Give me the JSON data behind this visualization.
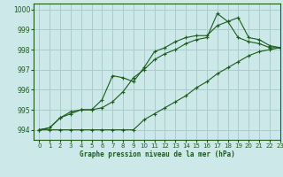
{
  "title": "Graphe pression niveau de la mer (hPa)",
  "bg_color": "#cce8e8",
  "grid_color": "#aacccc",
  "line_color": "#1a5c1a",
  "xlim": [
    -0.5,
    23
  ],
  "ylim": [
    993.5,
    1000.3
  ],
  "yticks": [
    994,
    995,
    996,
    997,
    998,
    999,
    1000
  ],
  "xticks": [
    0,
    1,
    2,
    3,
    4,
    5,
    6,
    7,
    8,
    9,
    10,
    11,
    12,
    13,
    14,
    15,
    16,
    17,
    18,
    19,
    20,
    21,
    22,
    23
  ],
  "series": [
    [
      994.0,
      994.1,
      994.6,
      994.8,
      995.0,
      995.0,
      995.1,
      995.4,
      995.9,
      996.6,
      997.0,
      997.5,
      997.8,
      998.0,
      998.3,
      998.5,
      998.6,
      999.8,
      999.4,
      999.6,
      998.6,
      998.5,
      998.2,
      998.1
    ],
    [
      994.0,
      994.1,
      994.6,
      994.9,
      995.0,
      995.0,
      995.5,
      996.7,
      996.6,
      996.4,
      997.1,
      997.9,
      998.1,
      998.4,
      998.6,
      998.7,
      998.7,
      999.2,
      999.4,
      998.6,
      998.4,
      998.3,
      998.1,
      998.1
    ],
    [
      994.0,
      994.0,
      994.0,
      994.0,
      994.0,
      994.0,
      994.0,
      994.0,
      994.0,
      994.0,
      994.5,
      994.8,
      995.1,
      995.4,
      995.7,
      996.1,
      996.4,
      996.8,
      997.1,
      997.4,
      997.7,
      997.9,
      998.0,
      998.1
    ]
  ]
}
